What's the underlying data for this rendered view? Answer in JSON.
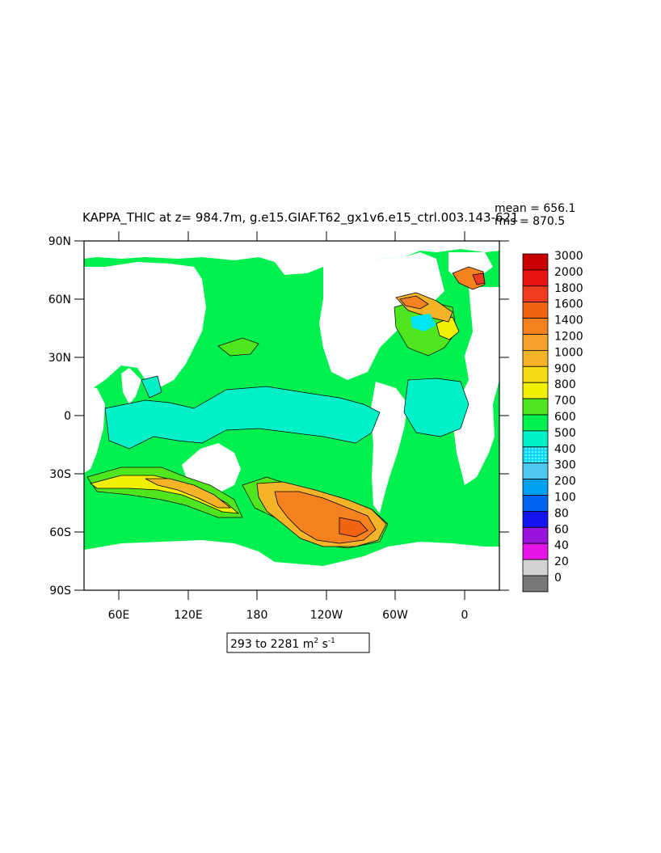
{
  "title": "KAPPA_THIC at z= 984.7m, g.e15.GIAF.T62_gx1v6.e15_ctrl.003.143-621",
  "stats": {
    "mean": "mean = 656.1",
    "rms": "rms = 870.5"
  },
  "range_label": {
    "prefix": "293 to 2281 m",
    "sup1": "2",
    "mid": " s",
    "sup2": "-1"
  },
  "lat_labels": [
    "90N",
    "60N",
    "30N",
    "0",
    "30S",
    "60S",
    "90S"
  ],
  "lon_labels": [
    "60E",
    "120E",
    "180",
    "120W",
    "60W",
    "0"
  ],
  "colorbar": {
    "levels": [
      "3000",
      "2000",
      "1800",
      "1600",
      "1400",
      "1200",
      "1000",
      "900",
      "800",
      "700",
      "600",
      "500",
      "400",
      "300",
      "200",
      "100",
      "80",
      "60",
      "40",
      "20",
      "0"
    ],
    "colors": [
      "#c80000",
      "#e61414",
      "#f03c1e",
      "#f06414",
      "#f5821e",
      "#f5a028",
      "#f5b428",
      "#f5dc14",
      "#f0f000",
      "#50e61e",
      "#00f050",
      "#00f0c8",
      "#00e6f0",
      "#50c8f0",
      "#00a0f0",
      "#0064f0",
      "#1414f0",
      "#9614dc",
      "#e614e6",
      "#d2d2d2",
      "#787878"
    ],
    "dotted_index": 12
  },
  "colors": {
    "land": "#ffffff",
    "base": "#00f050",
    "mid": "#50e61e",
    "high": "#f5b428",
    "higher": "#f5821e",
    "top": "#f03c1e",
    "low": "#00f0c8",
    "lower": "#00e6f0"
  }
}
